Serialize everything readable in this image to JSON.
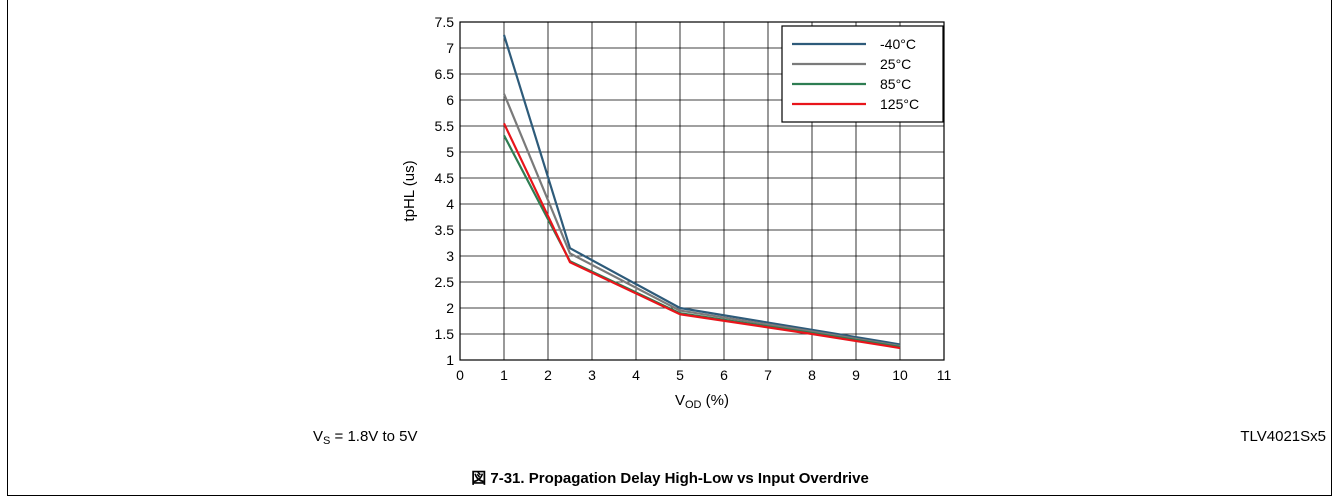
{
  "chart_data": {
    "type": "line",
    "xlabel": {
      "main": "V",
      "sub": "OD",
      "unit": " (%)"
    },
    "ylabel": "tpHL (us)",
    "xlim": [
      0,
      11
    ],
    "ylim": [
      1,
      7.5
    ],
    "xticks": [
      "0",
      "1",
      "2",
      "3",
      "4",
      "5",
      "6",
      "7",
      "8",
      "9",
      "10",
      "11"
    ],
    "yticks": [
      "1",
      "1.5",
      "2",
      "2.5",
      "3",
      "3.5",
      "4",
      "4.5",
      "5",
      "5.5",
      "6",
      "6.5",
      "7",
      "7.5"
    ],
    "grid": true,
    "legend_position": "top-right",
    "series": [
      {
        "name": "-40°C",
        "color": "#2e5b7a",
        "x": [
          1,
          2.5,
          5,
          8,
          10
        ],
        "y": [
          7.25,
          3.15,
          2.0,
          1.58,
          1.3
        ]
      },
      {
        "name": "25°C",
        "color": "#7a7a7a",
        "x": [
          1,
          2.5,
          5,
          8,
          10
        ],
        "y": [
          6.12,
          3.05,
          1.95,
          1.55,
          1.27
        ]
      },
      {
        "name": "85°C",
        "color": "#2e7d52",
        "x": [
          1,
          2.5,
          5,
          8,
          10
        ],
        "y": [
          5.32,
          2.9,
          1.9,
          1.52,
          1.25
        ]
      },
      {
        "name": "125°C",
        "color": "#e8151b",
        "x": [
          1,
          2.5,
          5,
          8,
          10
        ],
        "y": [
          5.55,
          2.88,
          1.88,
          1.5,
          1.23
        ]
      }
    ]
  },
  "conditions": {
    "main": "V",
    "sub": "S",
    "rest": " = 1.8V to 5V"
  },
  "part_number": "TLV4021Sx5",
  "caption": "図 7-31. Propagation Delay High-Low vs Input Overdrive"
}
